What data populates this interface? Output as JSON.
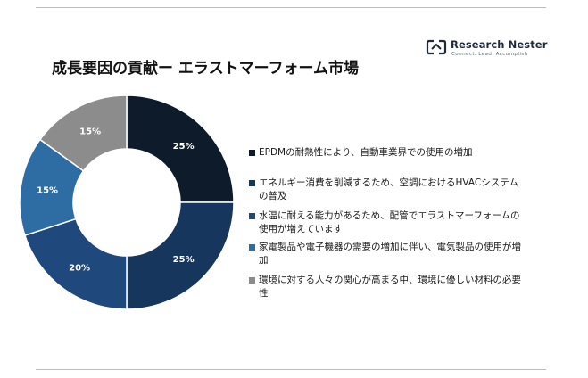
{
  "brand": {
    "name": "Research Nester",
    "tagline": "Connect. Lead. Accomplish"
  },
  "title": "成長要因の貢献ー エラストマーフォーム市場",
  "chart_data": {
    "type": "pie",
    "title": "成長要因の貢献ー エラストマーフォーム市場",
    "donut": true,
    "legend_position": "right",
    "unit": "%",
    "slices": [
      {
        "label": "EPDMの耐熱性により、自動車業界での使用の増加",
        "value": 25,
        "color": "#0d1b2a"
      },
      {
        "label": "エネルギー消費を削減するため、空調におけるHVACシステムの普及",
        "value": 25,
        "color": "#17365d"
      },
      {
        "label": "水温に耐える能力があるため、配管でエラストマーフォームの使用が増えています",
        "value": 20,
        "color": "#1f497d"
      },
      {
        "label": "家電製品や電子機器の需要の増加に伴い、電気製品の使用が増加",
        "value": 15,
        "color": "#2e6da4"
      },
      {
        "label": "環境に対する人々の関心が高まる中、環境に優しい材料の必要性",
        "value": 15,
        "color": "#8c8c8c"
      }
    ]
  }
}
